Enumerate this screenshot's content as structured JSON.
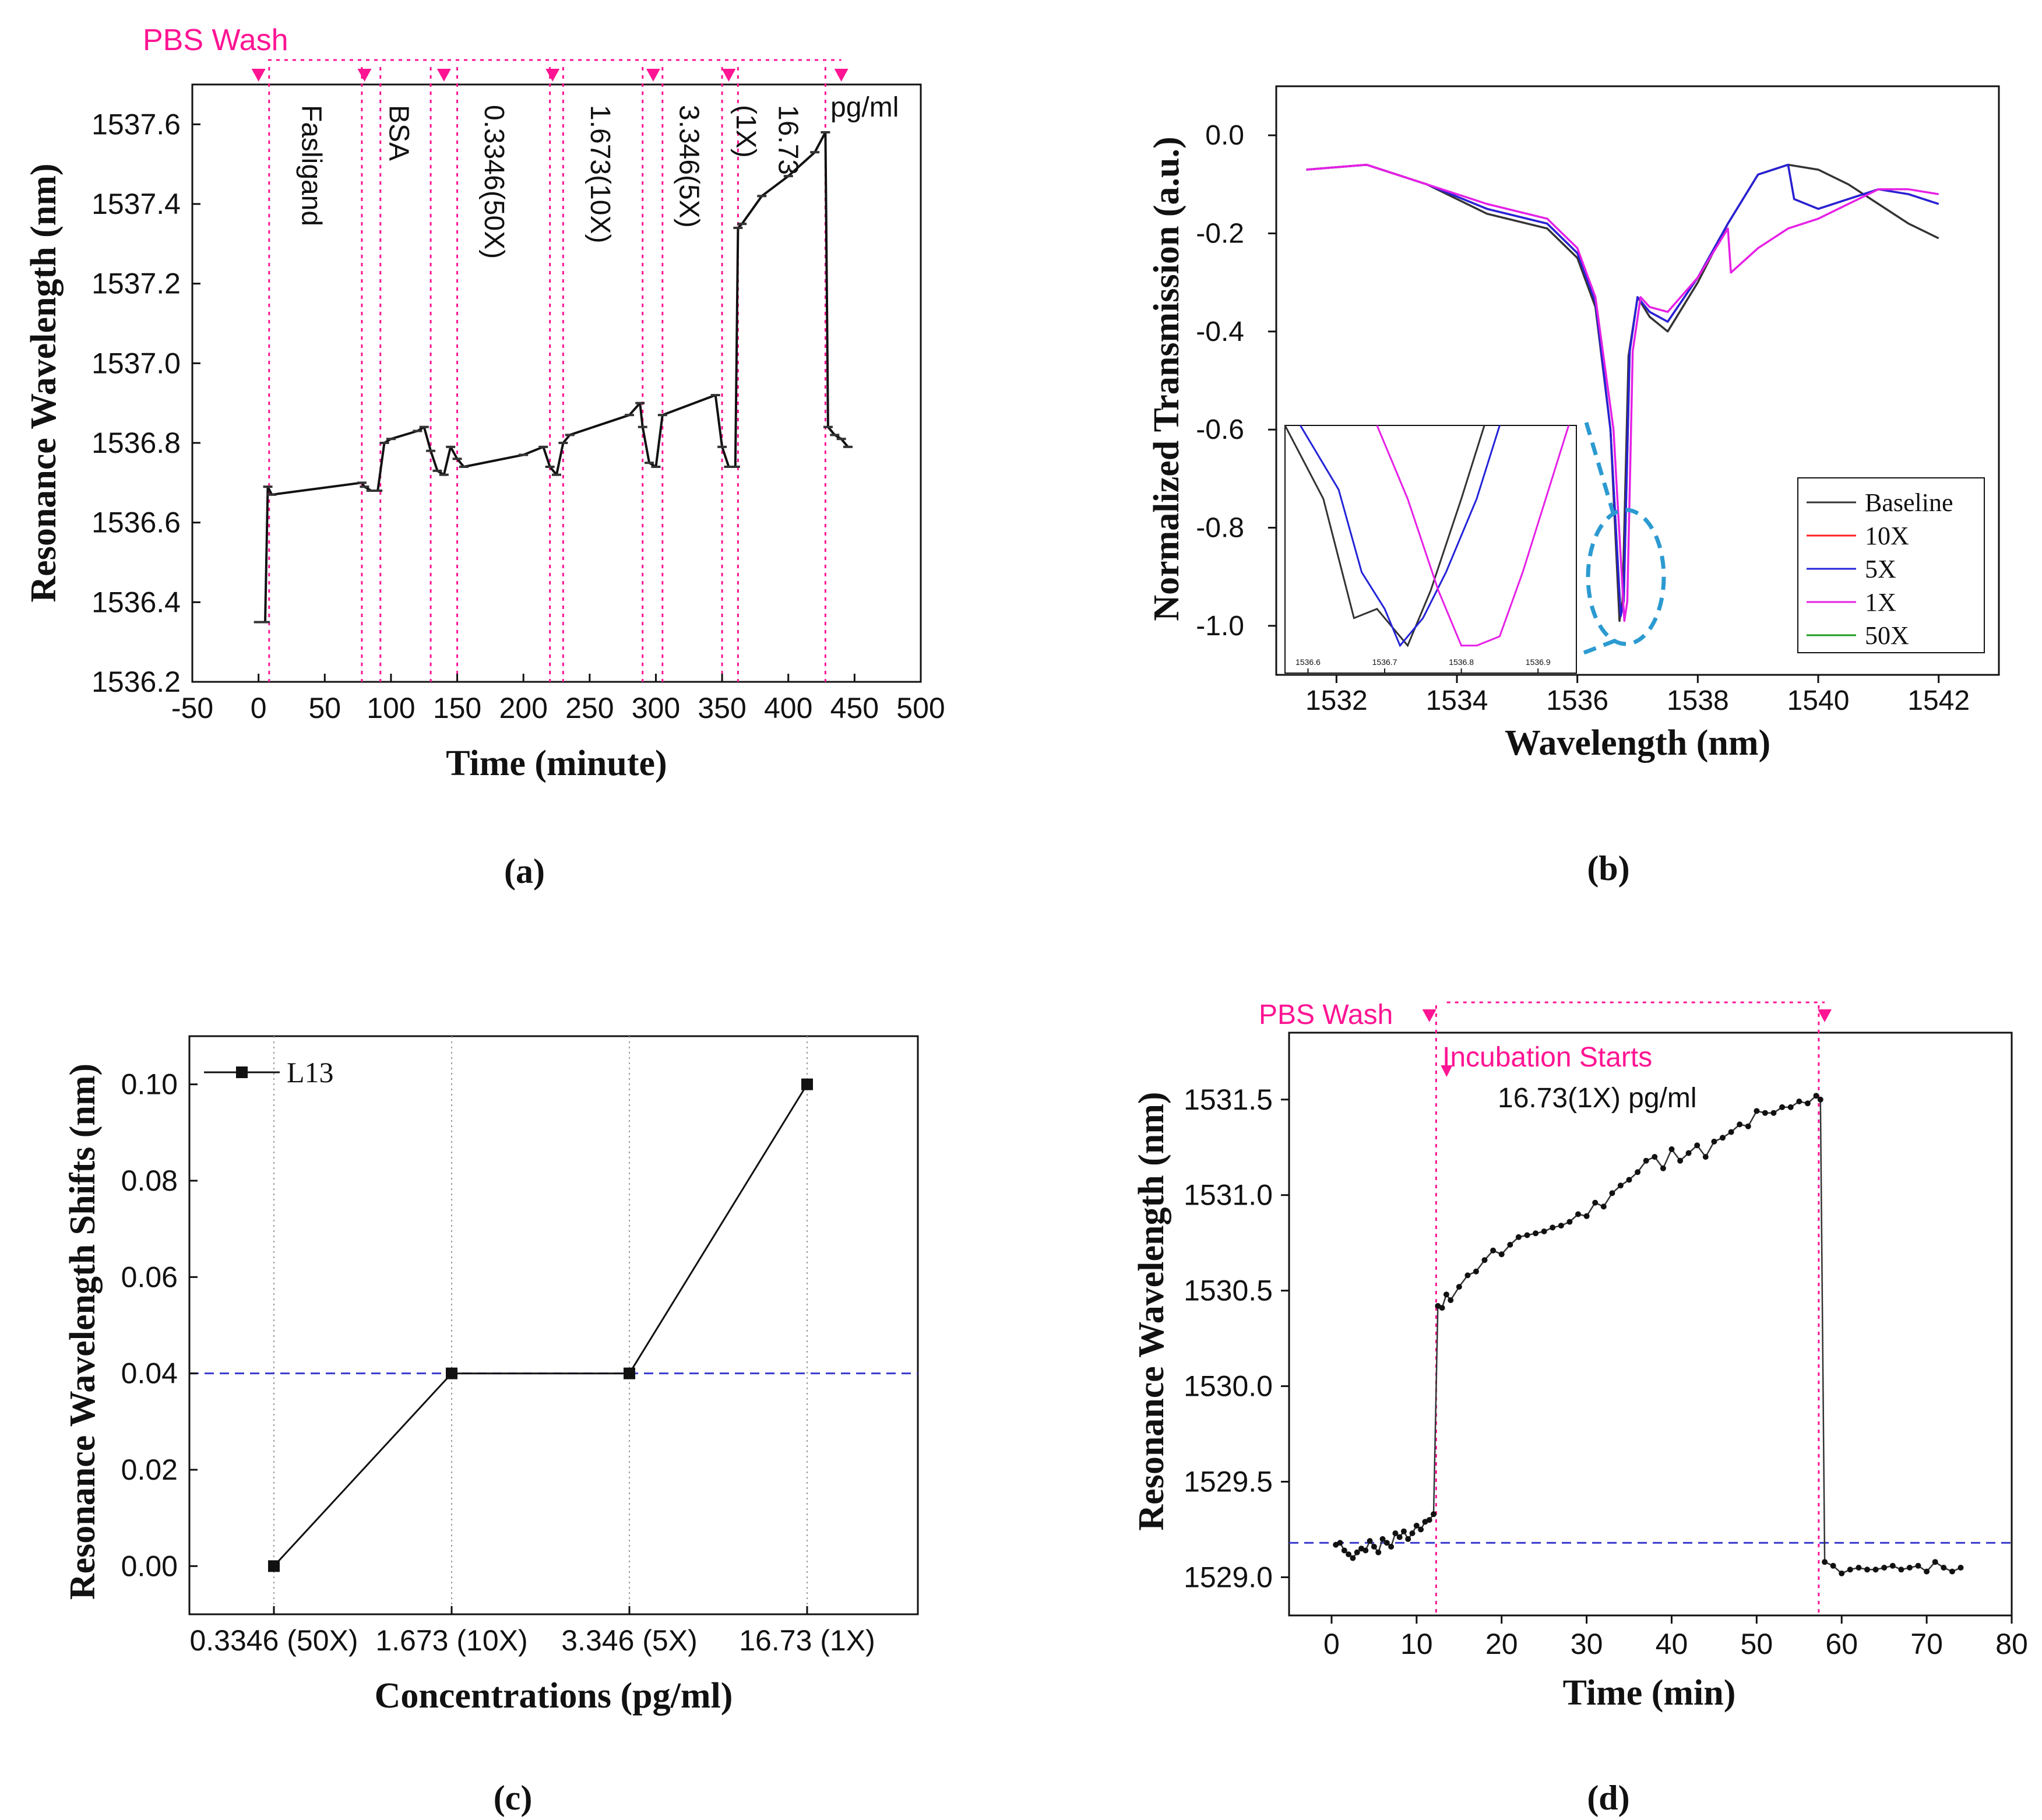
{
  "colors": {
    "pink": "#ff1493",
    "blue_dash": "#3a3acf",
    "black": "#111111",
    "gray": "#9a9a9a",
    "leader": "#2c9ad1"
  },
  "panel_labels": [
    "(a)",
    "(b)",
    "(c)",
    "(d)"
  ],
  "chart_data": [
    {
      "id": "a",
      "type": "line",
      "xlabel": "Time (minute)",
      "ylabel": "Resonance Wavelength   (nm)",
      "xlim": [
        -50,
        500
      ],
      "ylim": [
        1536.2,
        1537.7
      ],
      "xticks": [
        -50,
        0,
        50,
        100,
        150,
        200,
        250,
        300,
        350,
        400,
        450,
        500
      ],
      "yticks": [
        1536.2,
        1536.4,
        1536.6,
        1536.8,
        1537.0,
        1537.2,
        1537.4,
        1537.6
      ],
      "pbs_label": "PBS Wash",
      "unit_label": "pg/ml",
      "wash_marker_x": [
        0,
        80,
        140,
        222,
        298,
        355,
        440
      ],
      "event_lines_x": [
        8,
        78,
        92,
        130,
        150,
        220,
        230,
        290,
        305,
        350,
        362,
        428
      ],
      "stage_labels": [
        {
          "text": "Fasligand",
          "x": 40
        },
        {
          "text": "BSA",
          "x": 106
        },
        {
          "text": "0.3346(50X)",
          "x": 178
        },
        {
          "text": "1.673(10X)",
          "x": 258
        },
        {
          "text": "3.346(5X)",
          "x": 325
        },
        {
          "text": "(1X)",
          "x": 368
        },
        {
          "text": "16.73",
          "x": 400
        }
      ],
      "series": [
        {
          "name": "trace",
          "x": [
            0,
            5,
            7,
            10,
            78,
            80,
            85,
            90,
            95,
            100,
            120,
            125,
            130,
            135,
            140,
            145,
            150,
            155,
            200,
            215,
            220,
            225,
            230,
            235,
            280,
            288,
            290,
            295,
            300,
            305,
            345,
            350,
            355,
            360,
            362,
            365,
            380,
            400,
            420,
            428,
            430,
            435,
            440,
            445
          ],
          "y": [
            1536.35,
            1536.35,
            1536.69,
            1536.67,
            1536.7,
            1536.69,
            1536.68,
            1536.68,
            1536.8,
            1536.81,
            1536.83,
            1536.84,
            1536.78,
            1536.73,
            1536.72,
            1536.79,
            1536.76,
            1536.74,
            1536.77,
            1536.79,
            1536.74,
            1536.72,
            1536.8,
            1536.82,
            1536.87,
            1536.9,
            1536.84,
            1536.75,
            1536.74,
            1536.87,
            1536.92,
            1536.79,
            1536.74,
            1536.74,
            1537.34,
            1537.35,
            1537.42,
            1537.47,
            1537.53,
            1537.58,
            1536.84,
            1536.82,
            1536.81,
            1536.79
          ]
        }
      ]
    },
    {
      "id": "b",
      "type": "line",
      "xlabel": "Wavelength (nm)",
      "ylabel": "Normalized Transmission (a.u.)",
      "xlim": [
        1531,
        1543
      ],
      "ylim": [
        -1.1,
        0.1
      ],
      "xticks": [
        1532,
        1534,
        1536,
        1538,
        1540,
        1542
      ],
      "yticks": [
        0.0,
        -0.2,
        -0.4,
        -0.6,
        -0.8,
        -1.0
      ],
      "legend_position": "lower-right",
      "series": [
        {
          "name": "Baseline",
          "color": "#333333",
          "x": [
            1531.5,
            1532.5,
            1533.5,
            1534.5,
            1535.5,
            1536.0,
            1536.3,
            1536.55,
            1536.7,
            1536.75,
            1536.85,
            1537.0,
            1537.2,
            1537.5,
            1538.0,
            1538.5,
            1539.0,
            1539.5,
            1540.0,
            1540.5,
            1541.0,
            1541.5,
            1542.0
          ],
          "y": [
            -0.07,
            -0.06,
            -0.1,
            -0.16,
            -0.19,
            -0.25,
            -0.35,
            -0.6,
            -0.99,
            -0.95,
            -0.45,
            -0.33,
            -0.37,
            -0.4,
            -0.3,
            -0.18,
            -0.08,
            -0.06,
            -0.07,
            -0.1,
            -0.14,
            -0.18,
            -0.21
          ]
        },
        {
          "name": "10X",
          "color": "#ff2020",
          "x": [
            1531.5,
            1532.5,
            1533.5,
            1534.5,
            1535.5,
            1536.0,
            1536.3,
            1536.55,
            1536.72,
            1536.77,
            1536.87,
            1537.0,
            1537.2,
            1537.5,
            1538.0,
            1538.5,
            1539.0,
            1539.5,
            1539.6,
            1540.0,
            1540.5,
            1541.0,
            1541.5,
            1542.0
          ],
          "y": [
            -0.07,
            -0.06,
            -0.1,
            -0.15,
            -0.18,
            -0.24,
            -0.34,
            -0.6,
            -0.98,
            -0.95,
            -0.44,
            -0.33,
            -0.36,
            -0.38,
            -0.29,
            -0.18,
            -0.08,
            -0.06,
            -0.13,
            -0.15,
            -0.13,
            -0.11,
            -0.12,
            -0.14
          ]
        },
        {
          "name": "5X",
          "color": "#2323d8",
          "x": [
            1531.5,
            1532.5,
            1533.5,
            1534.5,
            1535.5,
            1536.0,
            1536.3,
            1536.55,
            1536.72,
            1536.77,
            1536.87,
            1537.0,
            1537.2,
            1537.5,
            1538.0,
            1538.5,
            1539.0,
            1539.5,
            1539.6,
            1540.0,
            1540.5,
            1541.0,
            1541.5,
            1542.0
          ],
          "y": [
            -0.07,
            -0.06,
            -0.1,
            -0.15,
            -0.18,
            -0.24,
            -0.34,
            -0.6,
            -0.98,
            -0.95,
            -0.44,
            -0.33,
            -0.36,
            -0.38,
            -0.29,
            -0.18,
            -0.08,
            -0.06,
            -0.13,
            -0.15,
            -0.13,
            -0.11,
            -0.12,
            -0.14
          ]
        },
        {
          "name": "1X",
          "color": "#e620e6",
          "x": [
            1531.5,
            1532.5,
            1533.5,
            1534.5,
            1535.5,
            1536.0,
            1536.3,
            1536.6,
            1536.78,
            1536.83,
            1536.92,
            1537.05,
            1537.2,
            1537.5,
            1538.0,
            1538.5,
            1538.55,
            1539.0,
            1539.5,
            1540.0,
            1540.5,
            1541.0,
            1541.5,
            1542.0
          ],
          "y": [
            -0.07,
            -0.06,
            -0.1,
            -0.14,
            -0.17,
            -0.23,
            -0.33,
            -0.6,
            -0.99,
            -0.95,
            -0.44,
            -0.33,
            -0.35,
            -0.36,
            -0.29,
            -0.19,
            -0.28,
            -0.23,
            -0.19,
            -0.17,
            -0.14,
            -0.11,
            -0.11,
            -0.12
          ]
        },
        {
          "name": "50X",
          "color": "#1f9a1f",
          "x": [],
          "y": []
        }
      ],
      "inset": {
        "xticks": [
          "1536.6",
          "1536.7",
          "1536.8",
          "1536.9"
        ],
        "xlim": [
          1536.57,
          1536.95
        ],
        "ylim": [
          -1.075,
          -0.94
        ],
        "series": [
          {
            "name": "Baseline",
            "color": "#333333",
            "x": [
              1536.57,
              1536.62,
              1536.66,
              1536.69,
              1536.71,
              1536.73,
              1536.76,
              1536.8,
              1536.83
            ],
            "y": [
              -0.9,
              -0.98,
              -1.045,
              -1.04,
              -1.05,
              -1.06,
              -1.03,
              -0.98,
              -0.9
            ]
          },
          {
            "name": "5X",
            "color": "#2323d8",
            "x": [
              1536.59,
              1536.64,
              1536.67,
              1536.7,
              1536.72,
              1536.75,
              1536.78,
              1536.82,
              1536.85
            ],
            "y": [
              -0.9,
              -0.975,
              -1.02,
              -1.04,
              -1.06,
              -1.045,
              -1.02,
              -0.98,
              -0.9
            ]
          },
          {
            "name": "1X",
            "color": "#e620e6",
            "x": [
              1536.69,
              1536.73,
              1536.77,
              1536.8,
              1536.82,
              1536.85,
              1536.88,
              1536.91,
              1536.94
            ],
            "y": [
              -0.9,
              -0.98,
              -1.03,
              -1.06,
              -1.06,
              -1.055,
              -1.02,
              -0.98,
              -0.9
            ]
          }
        ]
      }
    },
    {
      "id": "c",
      "type": "line",
      "xlabel": "Concentrations (pg/ml)",
      "ylabel": "Resonance Wavelength Shifts (nm)",
      "categories": [
        "0.3346 (50X)",
        "1.673 (10X)",
        "3.346 (5X)",
        "16.73 (1X)"
      ],
      "ylim": [
        -0.01,
        0.11
      ],
      "yticks": [
        "0.00",
        "0.02",
        "0.04",
        "0.06",
        "0.08",
        "0.10"
      ],
      "reference_line_y": 0.04,
      "legend_position": "top-left",
      "series": [
        {
          "name": "L13",
          "values": [
            0.0,
            0.04,
            0.04,
            0.1
          ]
        }
      ]
    },
    {
      "id": "d",
      "type": "scatter",
      "xlabel": "Time (min)",
      "ylabel": "Resonance Wavelength (nm)",
      "xlim": [
        -5,
        80
      ],
      "ylim": [
        1528.8,
        1531.85
      ],
      "xticks": [
        0,
        10,
        20,
        30,
        40,
        50,
        60,
        70,
        80
      ],
      "yticks": [
        "1529.0",
        "1529.5",
        "1530.0",
        "1530.5",
        "1531.0",
        "1531.5"
      ],
      "reference_line_y": 1529.18,
      "pbs_label": "PBS Wash",
      "incubation_label": "Incubation Starts",
      "conc_label": "16.73(1X) pg/ml",
      "wash_markers_x": [
        11.5,
        58
      ],
      "event_lines_x": [
        12.3,
        57.3
      ],
      "series": [
        {
          "name": "points",
          "x": [
            0.5,
            1,
            1.5,
            2,
            2.5,
            3,
            3.5,
            4,
            4.5,
            5,
            5.5,
            6,
            6.5,
            7,
            7.5,
            8,
            8.5,
            9,
            9.5,
            10,
            10.5,
            11,
            11.5,
            12,
            12.5,
            13,
            13.5,
            14,
            15,
            16,
            17,
            18,
            19,
            20,
            21,
            22,
            23,
            24,
            25,
            26,
            27,
            28,
            29,
            30,
            31,
            32,
            33,
            34,
            35,
            36,
            37,
            38,
            39,
            40,
            41,
            42,
            43,
            44,
            45,
            46,
            47,
            48,
            49,
            50,
            51,
            52,
            53,
            54,
            55,
            56,
            57,
            57.5,
            58,
            59,
            60,
            61,
            62,
            63,
            64,
            65,
            66,
            67,
            68,
            69,
            70,
            71,
            72,
            73,
            74
          ],
          "y": [
            1529.17,
            1529.18,
            1529.14,
            1529.12,
            1529.1,
            1529.13,
            1529.15,
            1529.14,
            1529.19,
            1529.16,
            1529.13,
            1529.2,
            1529.18,
            1529.16,
            1529.23,
            1529.21,
            1529.24,
            1529.2,
            1529.23,
            1529.27,
            1529.25,
            1529.29,
            1529.3,
            1529.33,
            1530.42,
            1530.41,
            1530.48,
            1530.45,
            1530.52,
            1530.58,
            1530.6,
            1530.66,
            1530.71,
            1530.69,
            1530.74,
            1530.78,
            1530.79,
            1530.8,
            1530.81,
            1530.83,
            1530.84,
            1530.86,
            1530.9,
            1530.89,
            1530.96,
            1530.94,
            1531.01,
            1531.05,
            1531.08,
            1531.12,
            1531.18,
            1531.2,
            1531.14,
            1531.24,
            1531.18,
            1531.22,
            1531.26,
            1531.2,
            1531.28,
            1531.3,
            1531.33,
            1531.37,
            1531.36,
            1531.44,
            1531.43,
            1531.43,
            1531.46,
            1531.46,
            1531.49,
            1531.48,
            1531.52,
            1531.5,
            1529.08,
            1529.06,
            1529.02,
            1529.04,
            1529.05,
            1529.04,
            1529.04,
            1529.05,
            1529.06,
            1529.04,
            1529.05,
            1529.06,
            1529.03,
            1529.08,
            1529.05,
            1529.03,
            1529.05
          ]
        }
      ]
    }
  ]
}
